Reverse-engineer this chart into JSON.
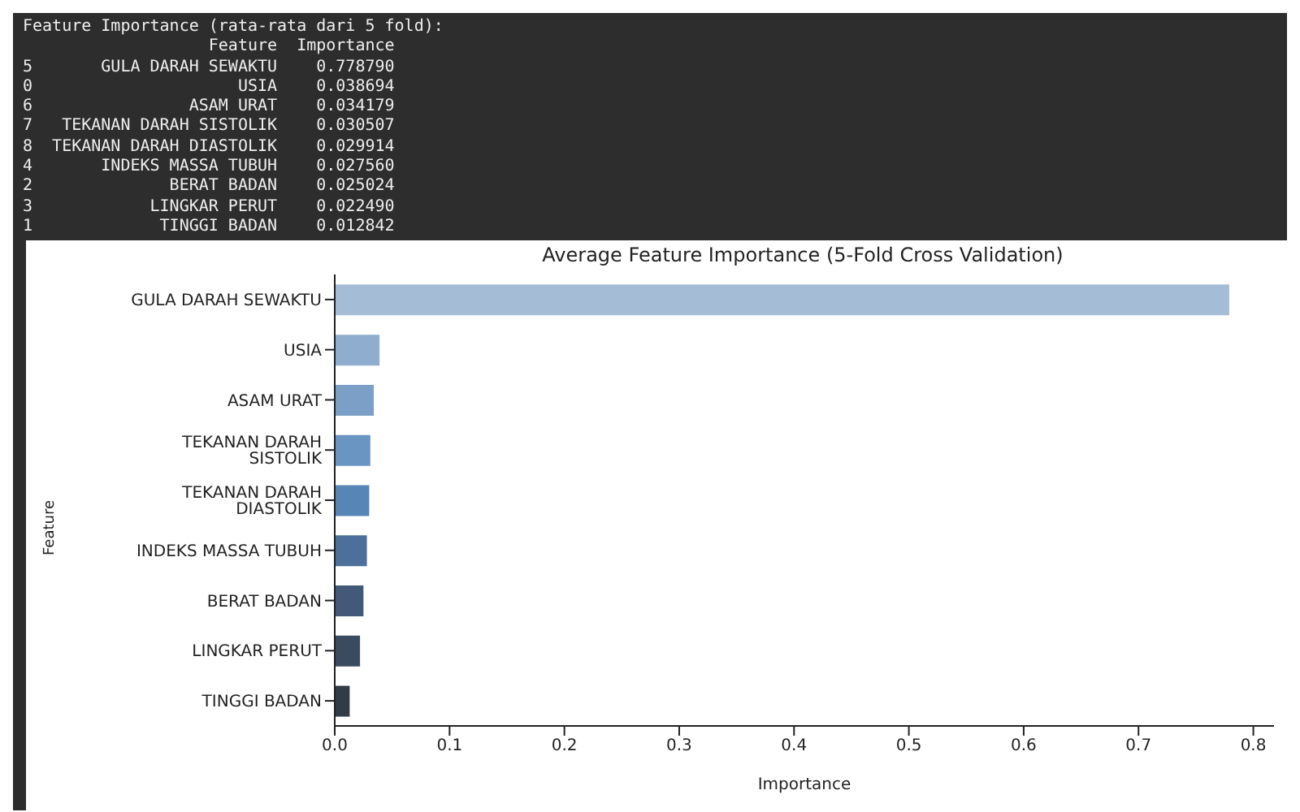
{
  "chart_data": {
    "type": "bar",
    "orientation": "horizontal",
    "title": "Average Feature Importance (5-Fold Cross Validation)",
    "xlabel": "Importance",
    "ylabel": "Feature",
    "categories": [
      "GULA DARAH SEWAKTU",
      "USIA",
      "ASAM URAT",
      "TEKANAN DARAH SISTOLIK",
      "TEKANAN DARAH DIASTOLIK",
      "INDEKS MASSA TUBUH",
      "BERAT BADAN",
      "LINGKAR PERUT",
      "TINGGI BADAN"
    ],
    "values": [
      0.779,
      0.039,
      0.034,
      0.031,
      0.03,
      0.028,
      0.025,
      0.022,
      0.013
    ],
    "colors": [
      "#a5bcd6",
      "#8faecf",
      "#7b9fc6",
      "#6a95c3",
      "#5785b6",
      "#4c709a",
      "#42597a",
      "#3b4b5f",
      "#323c46"
    ],
    "xlim": [
      0,
      0.818
    ],
    "xticks": [
      {
        "value": 0,
        "label": "0.0"
      },
      0.1,
      0.2,
      0.3,
      0.4,
      0.5,
      0.6,
      0.7,
      0.8
    ],
    "grid": false,
    "legend": false,
    "annotations": [
      "Feature Importance (rata-rata dari 5 fold):",
      "                   Feature  Importance",
      "5       GULA DARAH SEWAKTU    0.778790",
      "0                     USIA    0.038694",
      "6                ASAM URAT    0.034179",
      "7   TEKANAN DARAH SISTOLIK    0.030507",
      "8  TEKANAN DARAH DIASTOLIK    0.029914",
      "4       INDEKS MASSA TUBUH    0.027560",
      "2              BERAT BADAN    0.025024",
      "3            LINGKAR PERUT    0.022490",
      "1             TINGGI BADAN    0.012842"
    ]
  }
}
